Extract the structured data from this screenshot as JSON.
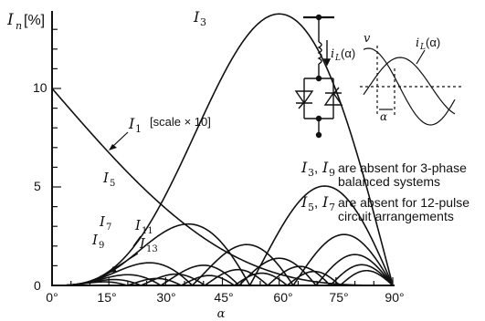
{
  "chart_data": {
    "type": "line",
    "ylabel": "I_n [%]",
    "xlabel": "α",
    "xlim": [
      0,
      90
    ],
    "ylim": [
      0,
      14
    ],
    "x_ticks": [
      "0°",
      "15°",
      "30°",
      "45°",
      "60°",
      "75°",
      "90°"
    ],
    "y_ticks": [
      "0",
      "5",
      "10"
    ],
    "grid": false,
    "series": [
      {
        "name": "I1 [scale × 10]",
        "harmonic": 1,
        "scale": 0.1
      },
      {
        "name": "I3",
        "harmonic": 3
      },
      {
        "name": "I5",
        "harmonic": 5
      },
      {
        "name": "I7",
        "harmonic": 7
      },
      {
        "name": "I9",
        "harmonic": 9
      },
      {
        "name": "I11",
        "harmonic": 11
      },
      {
        "name": "I13",
        "harmonic": 13
      }
    ],
    "annotations": [
      "I3, I9 are absent for 3-phase balanced systems",
      "I5, I7 are absent for 12-pulse circuit arrangements"
    ]
  },
  "labels": {
    "y_unit": "[%]",
    "i1_scale": "[scale × 10]",
    "note1_tail": "are absent for 3-phase",
    "note1_line2": "balanced systems",
    "note2_tail": "are absent for 12-pulse",
    "note2_line2": "circuit arrangements",
    "inset_v": "v",
    "inset_il": "(α)",
    "inset_alpha": "α"
  }
}
